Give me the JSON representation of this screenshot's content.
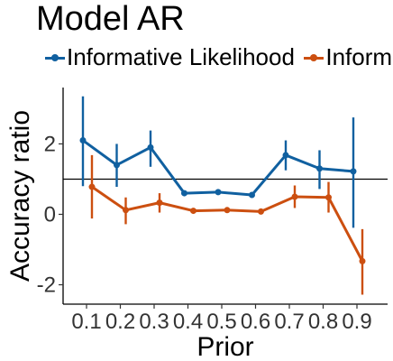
{
  "chart_data": {
    "type": "line",
    "title": "Model AR",
    "xlabel": "Prior",
    "ylabel": "Accuracy ratio",
    "categories": [
      "0.1",
      "0.2",
      "0.3",
      "0.4",
      "0.5",
      "0.6",
      "0.7",
      "0.8",
      "0.9"
    ],
    "yticks": [
      -2,
      0,
      2
    ],
    "ylim": [
      -2.55,
      3.6
    ],
    "reference_line": 1,
    "legend_position": "top",
    "grid": false,
    "series": [
      {
        "name": "Informative Likelihood",
        "color": "#1060a0",
        "values": [
          2.1,
          1.4,
          1.9,
          0.6,
          0.63,
          0.55,
          1.68,
          1.3,
          1.22
        ],
        "lower": [
          0.8,
          0.78,
          1.35,
          0.6,
          0.63,
          0.55,
          1.25,
          0.72,
          -0.38
        ],
        "upper": [
          3.35,
          2.0,
          2.38,
          0.6,
          0.63,
          0.55,
          2.1,
          1.82,
          2.75
        ]
      },
      {
        "name": "Informative Prior",
        "color": "#cc4f10",
        "values": [
          0.78,
          0.12,
          0.33,
          0.1,
          0.12,
          0.08,
          0.5,
          0.48,
          -1.33
        ],
        "lower": [
          -0.12,
          -0.28,
          0.05,
          0.1,
          0.12,
          0.08,
          0.18,
          0.05,
          -2.28
        ],
        "upper": [
          1.68,
          0.48,
          0.6,
          0.1,
          0.12,
          0.08,
          0.82,
          0.92,
          -0.42
        ]
      }
    ]
  }
}
